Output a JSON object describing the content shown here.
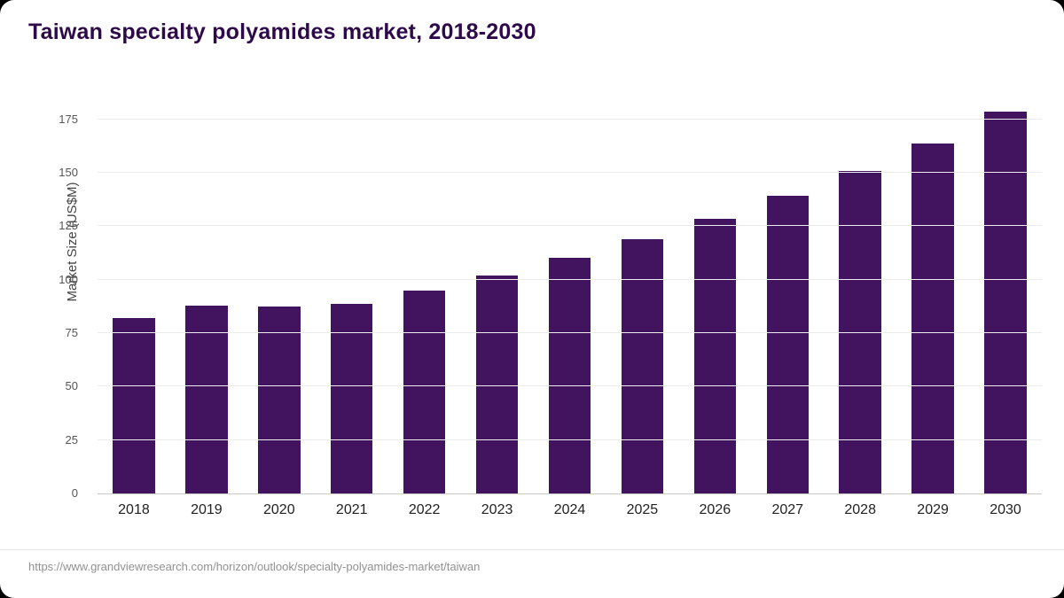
{
  "chart_data": {
    "type": "bar",
    "title": "Taiwan specialty polyamides market, 2018-2030",
    "xlabel": "",
    "ylabel": "Market Size (US$M)",
    "categories": [
      "2018",
      "2019",
      "2020",
      "2021",
      "2022",
      "2023",
      "2024",
      "2025",
      "2026",
      "2027",
      "2028",
      "2029",
      "2030"
    ],
    "values": [
      82,
      88,
      87.5,
      88.5,
      95,
      102,
      110,
      119,
      128.5,
      139,
      151,
      163.5,
      178.5
    ],
    "yticks": [
      0,
      25,
      50,
      75,
      100,
      125,
      150,
      175
    ],
    "ylim": [
      0,
      186
    ],
    "grid": true,
    "legend": "none",
    "bar_color": "#42135f"
  },
  "footer": {
    "source_url": "https://www.grandviewresearch.com/horizon/outlook/specialty-polyamides-market/taiwan"
  },
  "colors": {
    "title": "#2e0a4a",
    "bar": "#42135f",
    "grid": "#ececec",
    "axis_text": "#555555",
    "xtick_text": "#222222",
    "footer_text": "#919191",
    "background": "#ffffff",
    "frame": "#000000"
  }
}
